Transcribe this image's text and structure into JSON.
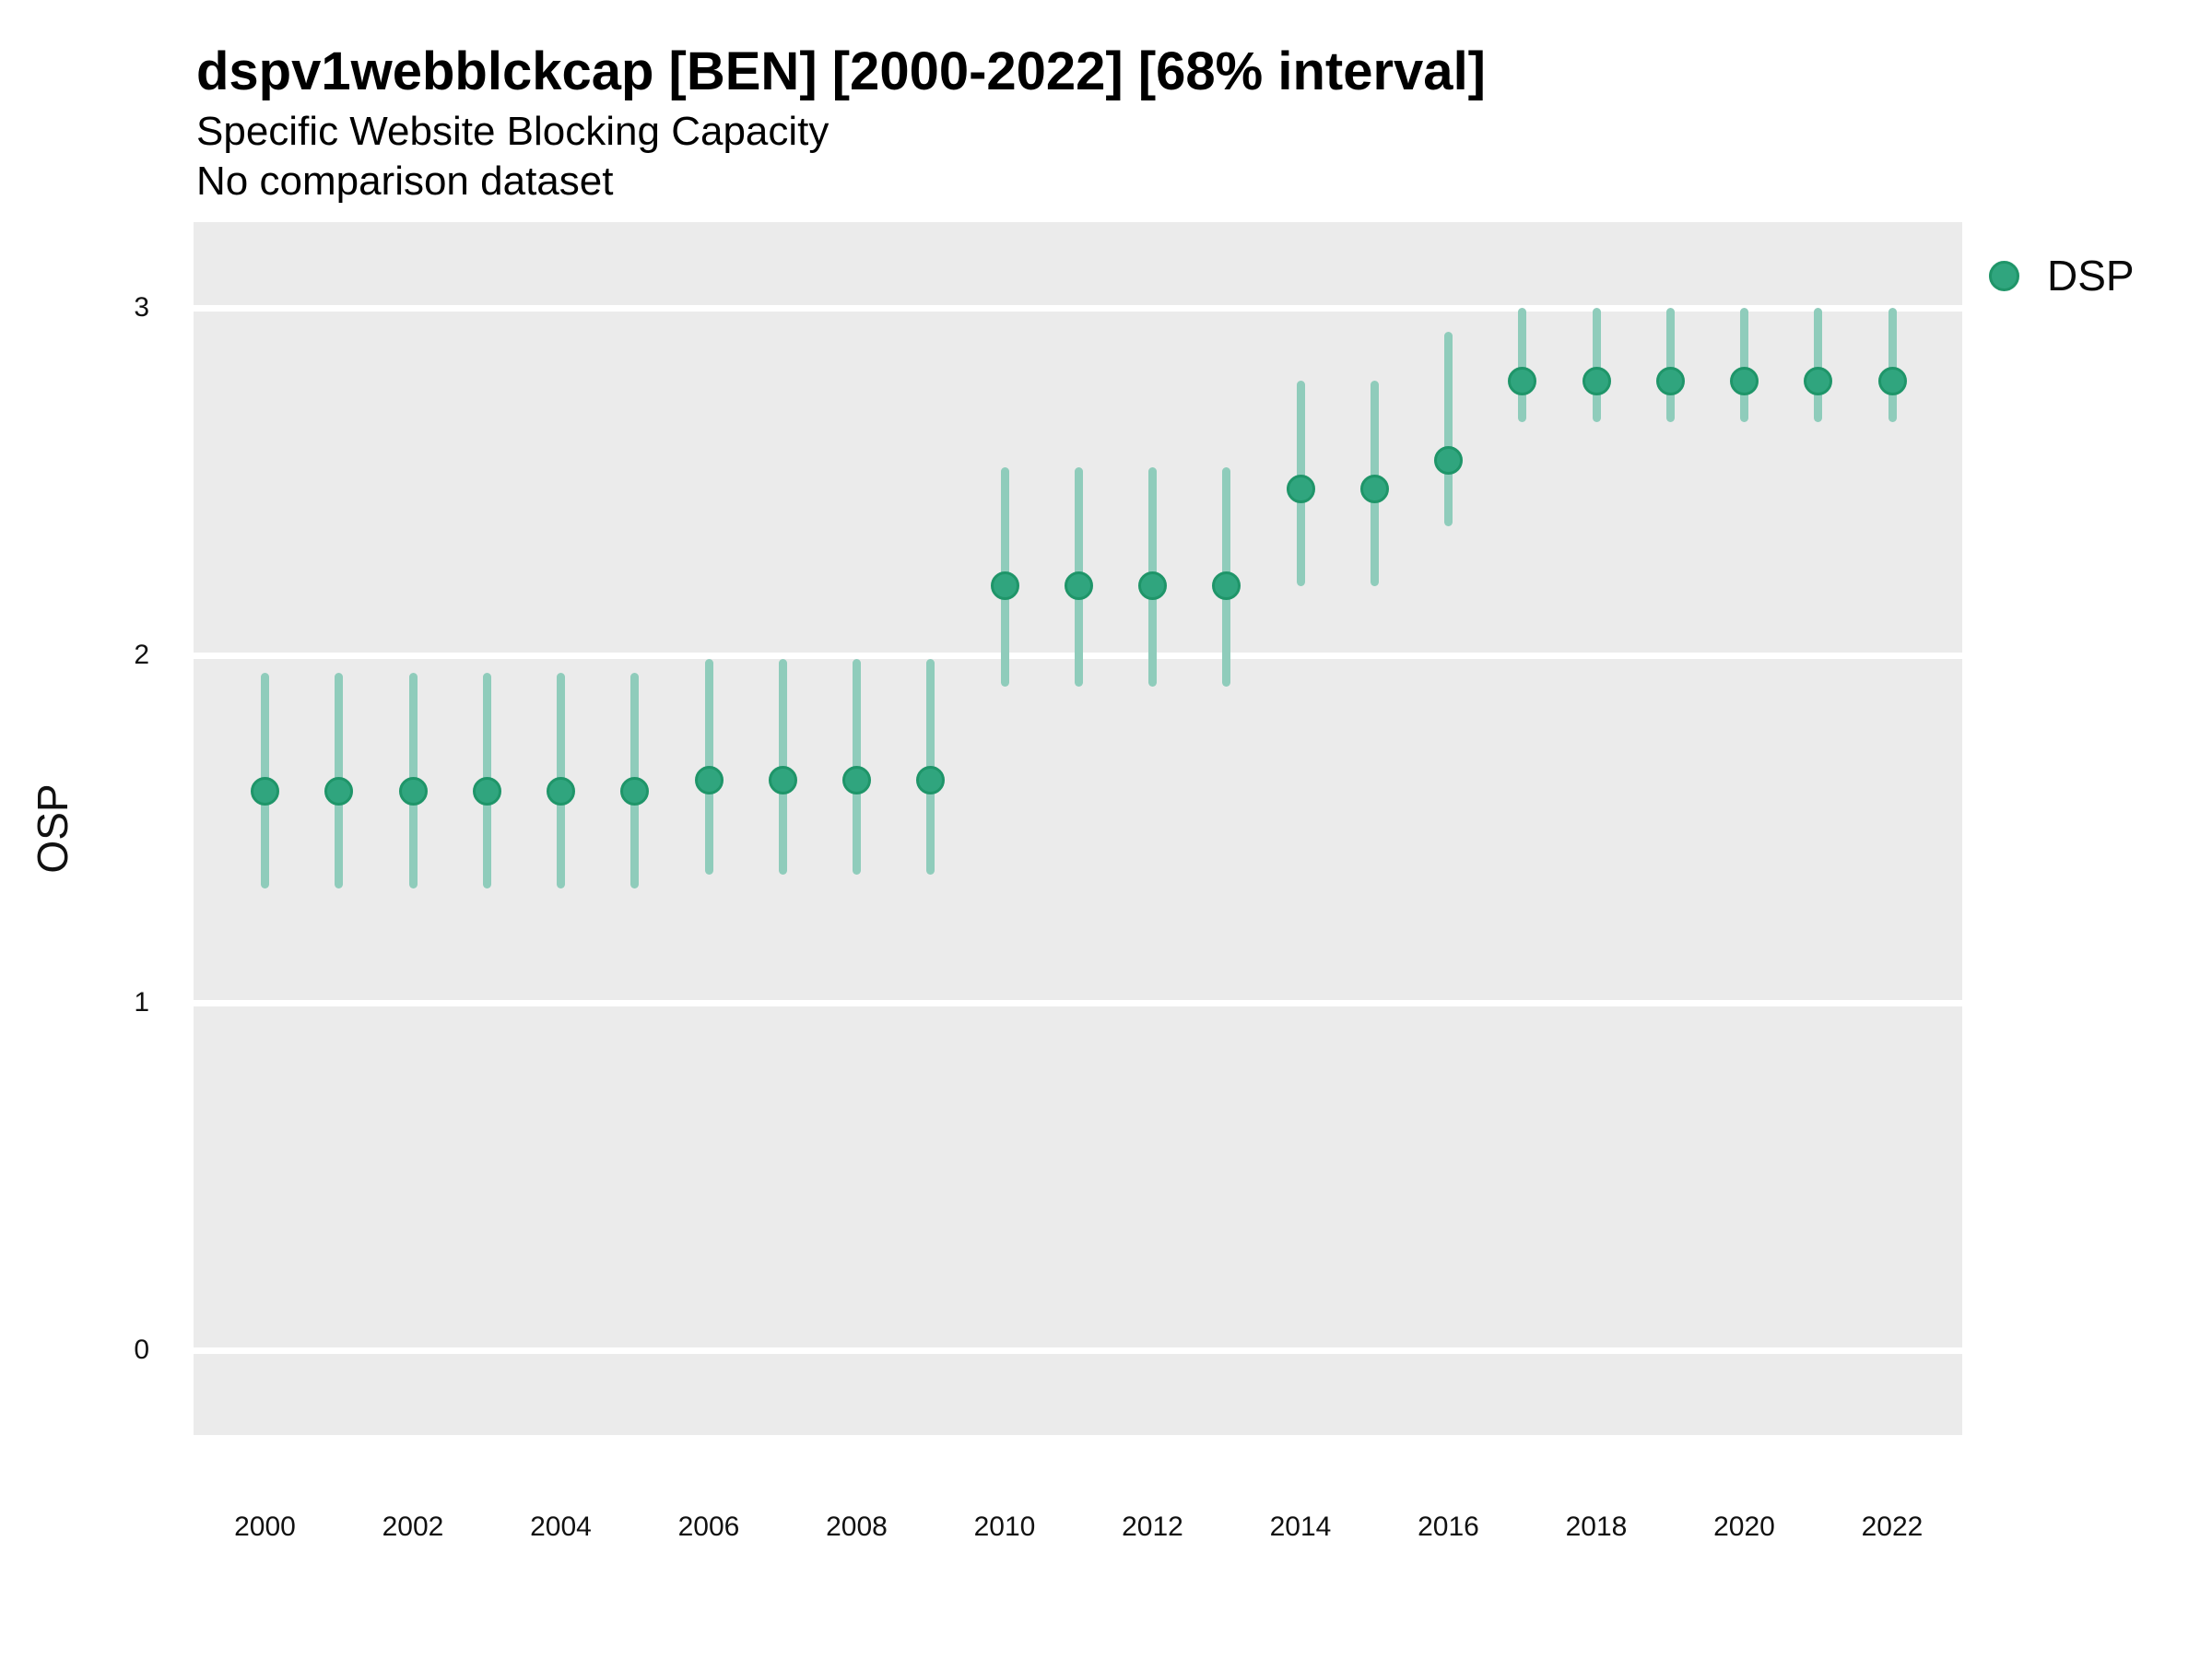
{
  "header": {
    "title": "dspv1webblckcap [BEN] [2000-2022] [68% interval]",
    "subtitle": "Specific Website Blocking Capacity",
    "note": "No comparison dataset"
  },
  "legend": {
    "position": "right-top",
    "items": [
      {
        "label": "DSP",
        "swatch": "circle",
        "color": "#30a57e"
      }
    ]
  },
  "colors": {
    "panel_background": "#ebebeb",
    "gridline": "#ffffff",
    "point_fill": "#30a57e",
    "point_stroke": "#1f9569",
    "interval_bar": "#8fccbb",
    "tick_text": "#111111",
    "title_text": "#000000"
  },
  "chart_data": {
    "type": "scatter",
    "title": "dspv1webblckcap [BEN] [2000-2022] [68% interval]",
    "subtitle": "Specific Website Blocking Capacity",
    "annotation": "No comparison dataset",
    "xlabel": "",
    "ylabel": "OSP",
    "interval_level": "68%",
    "legend_position": "right",
    "grid": "horizontal-only",
    "ylim": [
      -0.24,
      3.25
    ],
    "y_ticks": [
      0,
      1,
      2,
      3
    ],
    "x_ticks": [
      2000,
      2002,
      2004,
      2006,
      2008,
      2010,
      2012,
      2014,
      2016,
      2018,
      2020,
      2022
    ],
    "series": [
      {
        "name": "DSP",
        "points": [
          {
            "year": 2000,
            "value": 1.61,
            "lo": 1.33,
            "hi": 1.95
          },
          {
            "year": 2001,
            "value": 1.61,
            "lo": 1.33,
            "hi": 1.95
          },
          {
            "year": 2002,
            "value": 1.61,
            "lo": 1.33,
            "hi": 1.95
          },
          {
            "year": 2003,
            "value": 1.61,
            "lo": 1.33,
            "hi": 1.95
          },
          {
            "year": 2004,
            "value": 1.61,
            "lo": 1.33,
            "hi": 1.95
          },
          {
            "year": 2005,
            "value": 1.61,
            "lo": 1.33,
            "hi": 1.95
          },
          {
            "year": 2006,
            "value": 1.64,
            "lo": 1.37,
            "hi": 1.99
          },
          {
            "year": 2007,
            "value": 1.64,
            "lo": 1.37,
            "hi": 1.99
          },
          {
            "year": 2008,
            "value": 1.64,
            "lo": 1.37,
            "hi": 1.99
          },
          {
            "year": 2009,
            "value": 1.64,
            "lo": 1.37,
            "hi": 1.99
          },
          {
            "year": 2010,
            "value": 2.2,
            "lo": 1.91,
            "hi": 2.54
          },
          {
            "year": 2011,
            "value": 2.2,
            "lo": 1.91,
            "hi": 2.54
          },
          {
            "year": 2012,
            "value": 2.2,
            "lo": 1.91,
            "hi": 2.54
          },
          {
            "year": 2013,
            "value": 2.2,
            "lo": 1.91,
            "hi": 2.54
          },
          {
            "year": 2014,
            "value": 2.48,
            "lo": 2.2,
            "hi": 2.79
          },
          {
            "year": 2015,
            "value": 2.48,
            "lo": 2.2,
            "hi": 2.79
          },
          {
            "year": 2016,
            "value": 2.56,
            "lo": 2.37,
            "hi": 2.93
          },
          {
            "year": 2017,
            "value": 2.79,
            "lo": 2.67,
            "hi": 3.0
          },
          {
            "year": 2018,
            "value": 2.79,
            "lo": 2.67,
            "hi": 3.0
          },
          {
            "year": 2019,
            "value": 2.79,
            "lo": 2.67,
            "hi": 3.0
          },
          {
            "year": 2020,
            "value": 2.79,
            "lo": 2.67,
            "hi": 3.0
          },
          {
            "year": 2021,
            "value": 2.79,
            "lo": 2.67,
            "hi": 3.0
          },
          {
            "year": 2022,
            "value": 2.79,
            "lo": 2.67,
            "hi": 3.0
          }
        ]
      }
    ]
  }
}
